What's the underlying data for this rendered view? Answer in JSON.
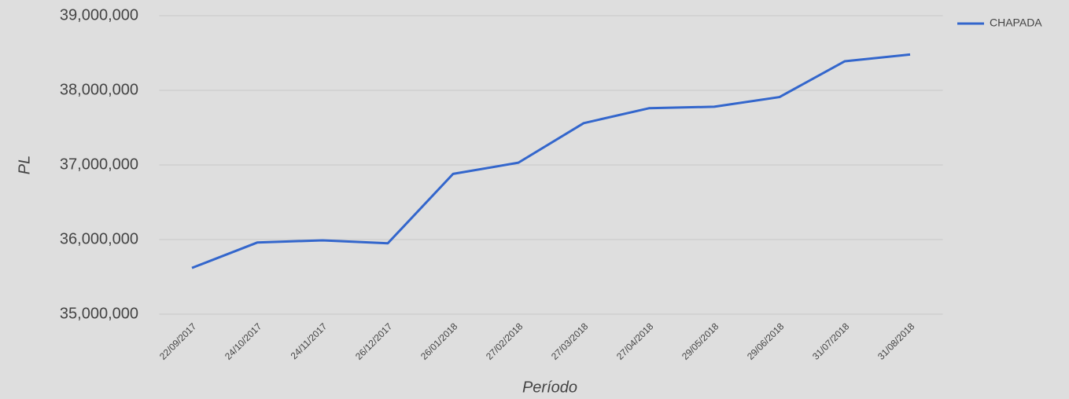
{
  "chart_data": {
    "type": "line",
    "x_label": "Período",
    "y_label": "PL",
    "categories": [
      "22/09/2017",
      "24/10/2017",
      "24/11/2017",
      "26/12/2017",
      "26/01/2018",
      "27/02/2018",
      "27/03/2018",
      "27/04/2018",
      "29/05/2018",
      "29/06/2018",
      "31/07/2018",
      "31/08/2018"
    ],
    "series": [
      {
        "name": "CHAPADA",
        "color": "#3366cc",
        "values": [
          35620000,
          35960000,
          35990000,
          35950000,
          36880000,
          37030000,
          37560000,
          37760000,
          37780000,
          37910000,
          38390000,
          38480000
        ]
      }
    ],
    "ylim": [
      35000000,
      39000000
    ],
    "yticks": [
      {
        "value": 35000000,
        "label": "35,000,000"
      },
      {
        "value": 36000000,
        "label": "36,000,000"
      },
      {
        "value": 37000000,
        "label": "37,000,000"
      },
      {
        "value": 38000000,
        "label": "38,000,000"
      },
      {
        "value": 39000000,
        "label": "39,000,000"
      }
    ],
    "grid": true,
    "legend": "right"
  }
}
